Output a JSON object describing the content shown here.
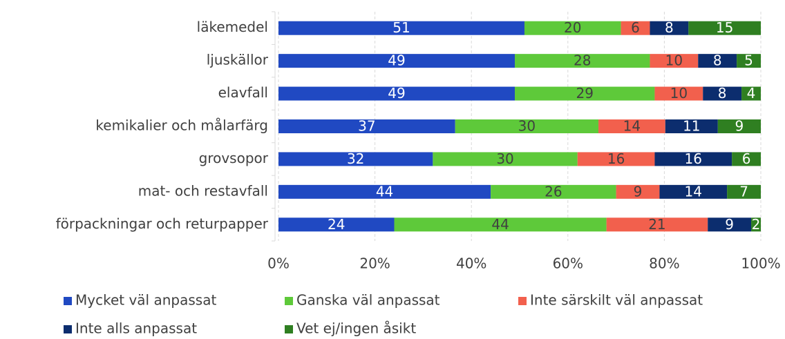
{
  "chart_data": {
    "type": "percent-stacked-barh",
    "categories": [
      "läkemedel",
      "ljuskällor",
      "elavfall",
      "kemikalier och målarfärg",
      "grovsopor",
      "mat- och restavfall",
      "förpackningar och returpapper"
    ],
    "series": [
      {
        "name": "Mycket väl anpassat",
        "color": "#2049c2",
        "label_color": "#ffffff",
        "values": [
          51,
          49,
          49,
          37,
          32,
          44,
          24
        ]
      },
      {
        "name": "Ganska väl anpassat",
        "color": "#5ec93a",
        "label_color": "#404040",
        "values": [
          20,
          28,
          29,
          30,
          30,
          26,
          44
        ]
      },
      {
        "name": "Inte särskilt väl anpassat",
        "color": "#f2604d",
        "label_color": "#404040",
        "values": [
          6,
          10,
          10,
          14,
          16,
          9,
          21
        ]
      },
      {
        "name": "Inte alls anpassat",
        "color": "#0c2d6e",
        "label_color": "#ffffff",
        "values": [
          8,
          8,
          8,
          11,
          16,
          14,
          9
        ]
      },
      {
        "name": "Vet ej/ingen åsikt",
        "color": "#2f7f21",
        "label_color": "#ffffff",
        "values": [
          15,
          5,
          4,
          9,
          6,
          7,
          2
        ]
      }
    ],
    "xlim": [
      0,
      100
    ],
    "xticks": [
      {
        "value": 0,
        "label": "0%"
      },
      {
        "value": 20,
        "label": "20%"
      },
      {
        "value": 40,
        "label": "40%"
      },
      {
        "value": 60,
        "label": "60%"
      },
      {
        "value": 80,
        "label": "80%"
      },
      {
        "value": 100,
        "label": "100%"
      }
    ],
    "grid": true,
    "legend": "bottom"
  }
}
